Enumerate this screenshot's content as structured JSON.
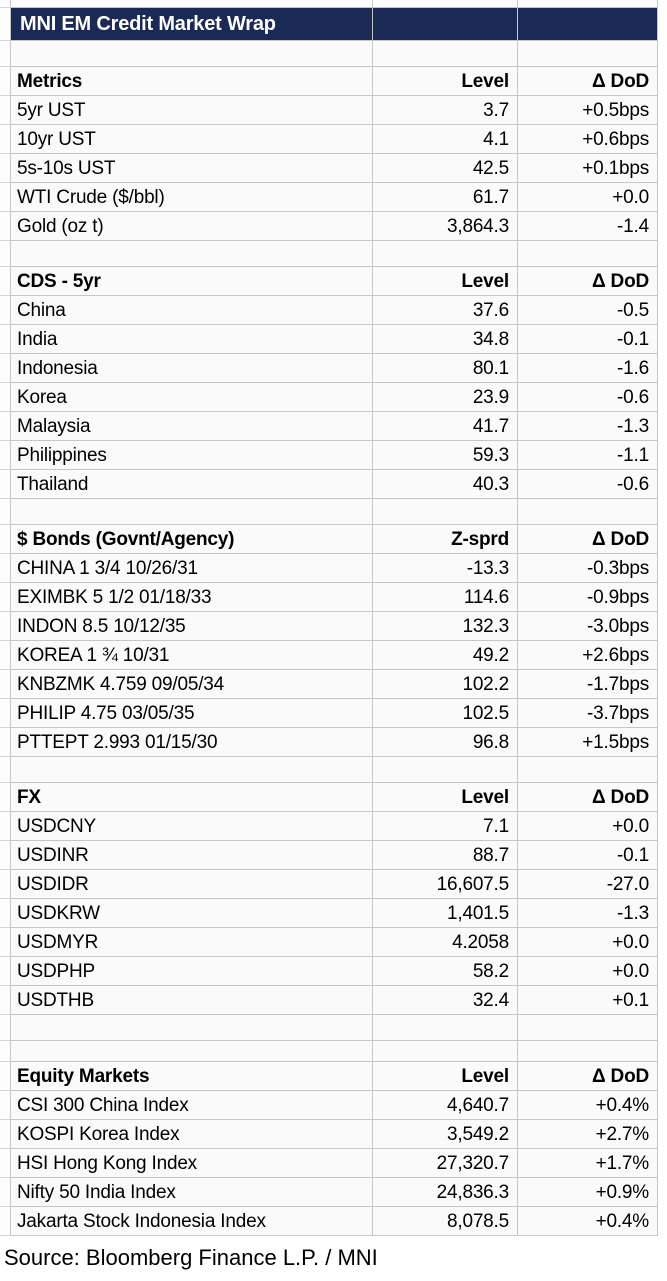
{
  "title": "MNI EM Credit Market Wrap",
  "source": "Source: Bloomberg Finance L.P. / MNI",
  "colors": {
    "header_bg": "#1b2a55",
    "header_text": "#ffffff",
    "grid_line": "#c6c6c6",
    "gutter_line": "#d6d6d6",
    "cell_bg": "#fafafa",
    "text": "#000000"
  },
  "chart_data": {
    "type": "table",
    "title": "MNI EM Credit Market Wrap",
    "sections": [
      {
        "name": "Metrics",
        "value_header": "Level",
        "change_header": "Δ DoD",
        "rows": [
          [
            "5yr UST",
            "3.7",
            "+0.5bps"
          ],
          [
            "10yr UST",
            "4.1",
            "+0.6bps"
          ],
          [
            "5s-10s UST",
            "42.5",
            "+0.1bps"
          ],
          [
            "WTI Crude ($/bbl)",
            "61.7",
            "+0.0"
          ],
          [
            "Gold (oz t)",
            "3,864.3",
            "-1.4"
          ]
        ]
      },
      {
        "name": "CDS - 5yr",
        "value_header": "Level",
        "change_header": "Δ DoD",
        "rows": [
          [
            "China",
            "37.6",
            "-0.5"
          ],
          [
            "India",
            "34.8",
            "-0.1"
          ],
          [
            "Indonesia",
            "80.1",
            "-1.6"
          ],
          [
            "Korea",
            "23.9",
            "-0.6"
          ],
          [
            "Malaysia",
            "41.7",
            "-1.3"
          ],
          [
            "Philippines",
            "59.3",
            "-1.1"
          ],
          [
            "Thailand",
            "40.3",
            "-0.6"
          ]
        ]
      },
      {
        "name": "$ Bonds (Govnt/Agency)",
        "value_header": "Z-sprd",
        "change_header": "Δ DoD",
        "rows": [
          [
            "CHINA 1 3/4 10/26/31",
            "-13.3",
            "-0.3bps"
          ],
          [
            "EXIMBK 5 1/2 01/18/33",
            "114.6",
            "-0.9bps"
          ],
          [
            "INDON 8.5 10/12/35",
            "132.3",
            "-3.0bps"
          ],
          [
            "KOREA 1 ¾ 10/31",
            "49.2",
            "+2.6bps"
          ],
          [
            "KNBZMK 4.759 09/05/34",
            "102.2",
            "-1.7bps"
          ],
          [
            "PHILIP 4.75 03/05/35",
            "102.5",
            "-3.7bps"
          ],
          [
            "PTTEPT 2.993 01/15/30",
            "96.8",
            "+1.5bps"
          ]
        ]
      },
      {
        "name": "FX",
        "value_header": "Level",
        "change_header": "Δ DoD",
        "rows": [
          [
            "USDCNY",
            "7.1",
            "+0.0"
          ],
          [
            "USDINR",
            "88.7",
            "-0.1"
          ],
          [
            "USDIDR",
            "16,607.5",
            "-27.0"
          ],
          [
            "USDKRW",
            "1,401.5",
            "-1.3"
          ],
          [
            "USDMYR",
            "4.2058",
            "+0.0"
          ],
          [
            "USDPHP",
            "58.2",
            "+0.0"
          ],
          [
            "USDTHB",
            "32.4",
            "+0.1"
          ]
        ]
      },
      {
        "name": "Equity Markets",
        "value_header": "Level",
        "change_header": "Δ DoD",
        "gap_before": 2,
        "rows": [
          [
            "CSI 300 China Index",
            "4,640.7",
            "+0.4%"
          ],
          [
            "KOSPI Korea Index",
            "3,549.2",
            "+2.7%"
          ],
          [
            "HSI Hong Kong Index",
            "27,320.7",
            "+1.7%"
          ],
          [
            "Nifty 50 India Index",
            "24,836.3",
            "+0.9%"
          ],
          [
            "Jakarta Stock Indonesia Index",
            "8,078.5",
            "+0.4%"
          ]
        ]
      }
    ]
  }
}
